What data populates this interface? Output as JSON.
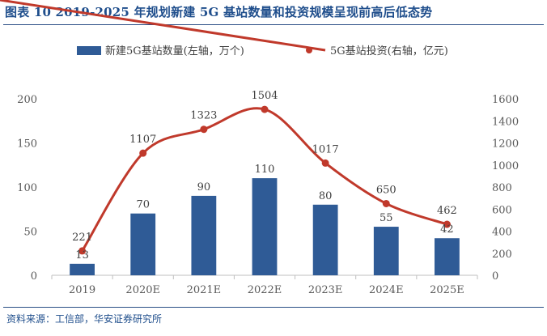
{
  "title": "图表 10 2019-2025 年规划新建 5G 基站数量和投资规模呈现前高后低态势",
  "source": "资料来源：工信部，华安证券研究所",
  "colors": {
    "bar": "#2f5b96",
    "line": "#c0392b",
    "rule": "#2b4f86",
    "title": "#1f4e8c"
  },
  "chart_data": {
    "type": "bar",
    "categories": [
      "2019",
      "2020E",
      "2021E",
      "2022E",
      "2023E",
      "2024E",
      "2025E"
    ],
    "series": [
      {
        "name": "新建5G基站数量(左轴，万个)",
        "type": "bar",
        "axis": "left",
        "values": [
          13,
          70,
          90,
          110,
          80,
          55,
          42
        ]
      },
      {
        "name": "5G基站投资(右轴，亿元)",
        "type": "line",
        "axis": "right",
        "smooth": true,
        "values": [
          221,
          1107,
          1323,
          1504,
          1017,
          650,
          462
        ]
      }
    ],
    "y_left": {
      "ylim": [
        0,
        200
      ],
      "ticks": [
        "0",
        "50",
        "100",
        "150",
        "200"
      ]
    },
    "y_right": {
      "ylim": [
        0,
        1600
      ],
      "ticks": [
        "0",
        "200",
        "400",
        "600",
        "800",
        "1000",
        "1200",
        "1400",
        "1600"
      ]
    },
    "grid": false,
    "legend": "top-center"
  }
}
